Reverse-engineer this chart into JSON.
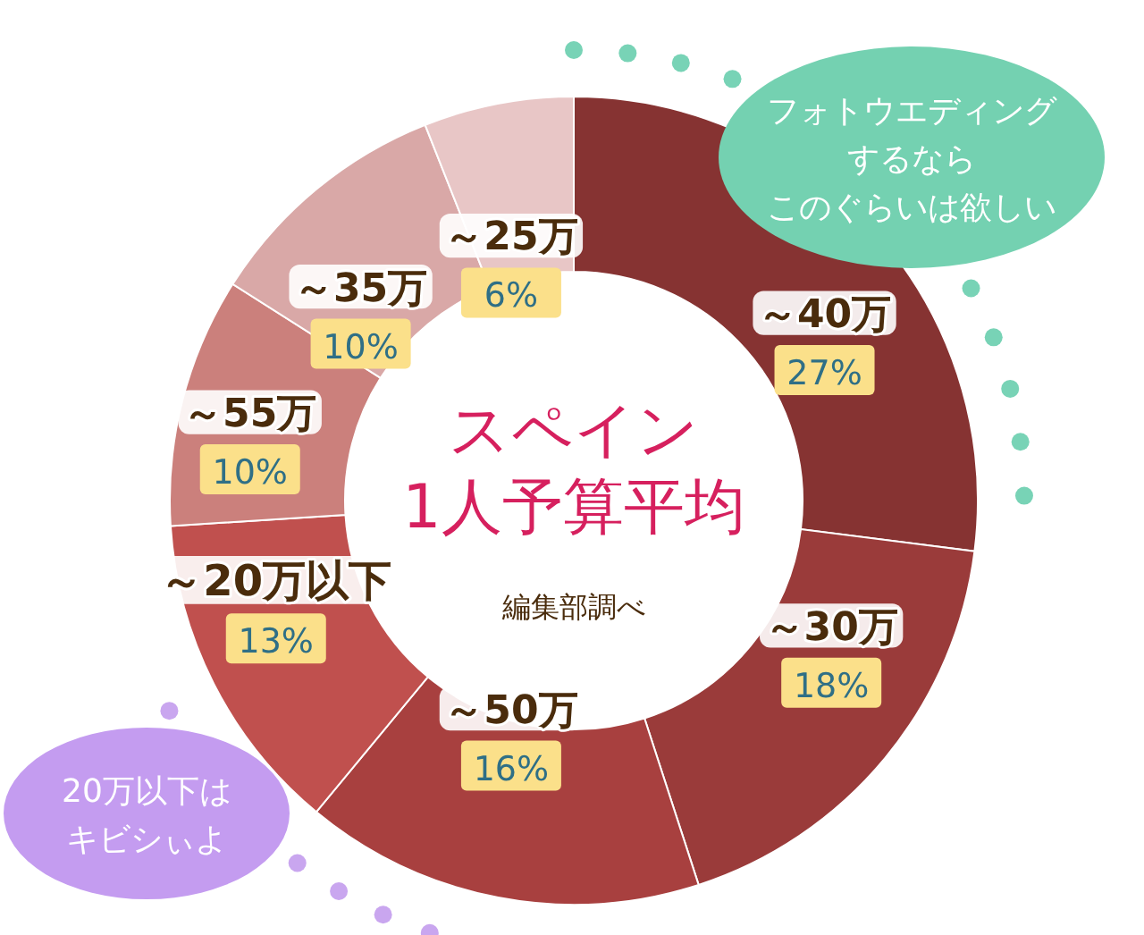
{
  "chart_data": {
    "type": "donut",
    "title": "スペイン",
    "subtitle": "1人予算平均",
    "categories": [
      "～40万",
      "～30万",
      "～50万",
      "～20万以下",
      "～55万",
      "～35万",
      "～25万"
    ],
    "values": [
      27,
      18,
      16,
      13,
      10,
      10,
      6
    ],
    "value_labels": [
      "27%",
      "18%",
      "16%",
      "13%",
      "10%",
      "10%",
      "6%"
    ],
    "colors": [
      "#863332",
      "#9a3b3a",
      "#a8403f",
      "#c0504e",
      "#cb807c",
      "#d9a8a7",
      "#e8c6c6"
    ],
    "annotations": [
      "編集部調べ",
      "フォトウエディングするならこのぐらいは欲しい",
      "20万以下はキビシぃよ"
    ]
  }
}
